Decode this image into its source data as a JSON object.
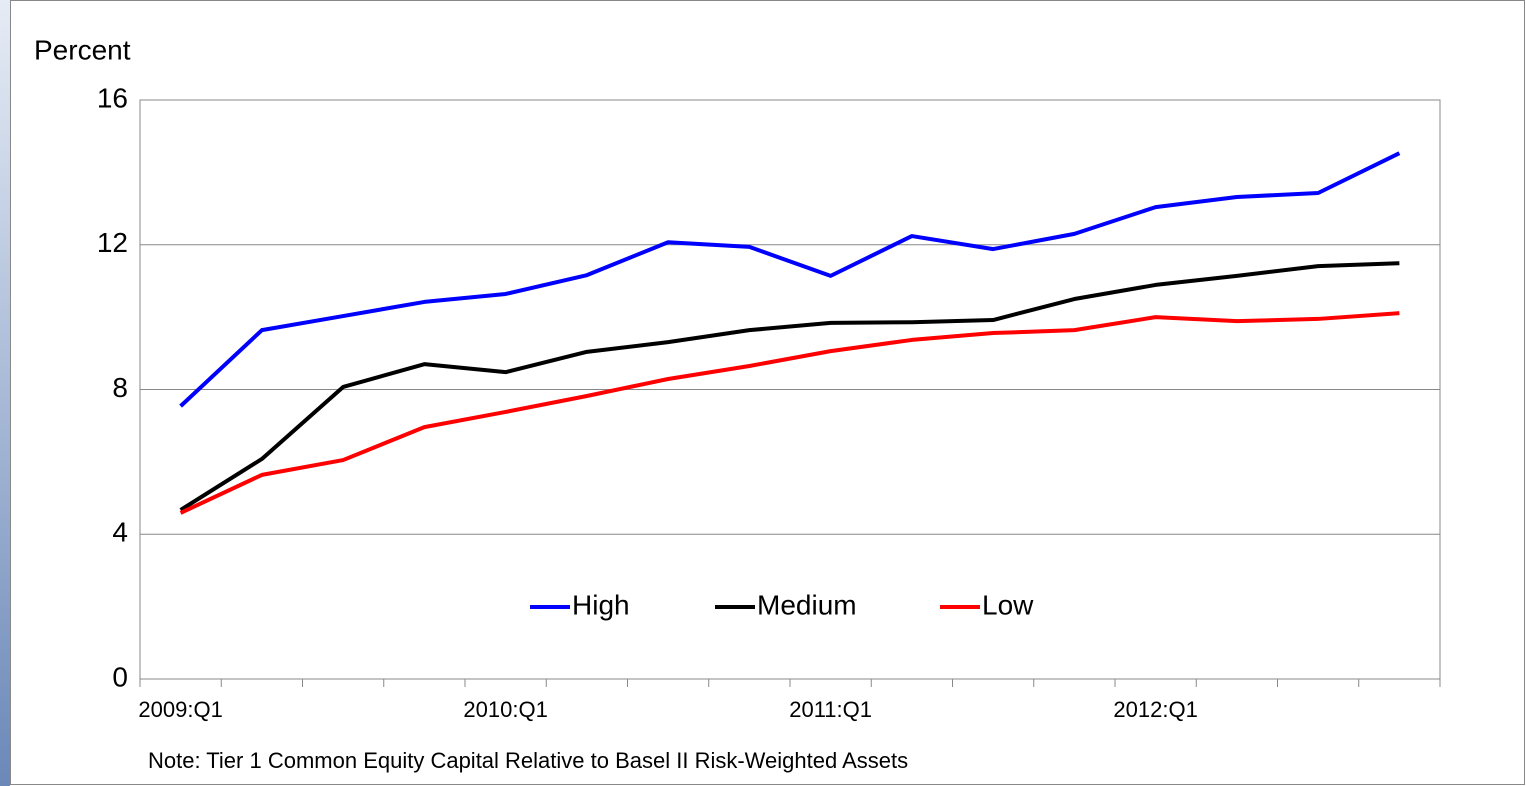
{
  "chart_data": {
    "type": "line",
    "y_label": "Percent",
    "note": "Note:  Tier 1 Common Equity Capital Relative to Basel II Risk-Weighted Assets",
    "categories": [
      "2009:Q1",
      null,
      null,
      null,
      "2010:Q1",
      null,
      null,
      null,
      "2011:Q1",
      null,
      null,
      null,
      "2012:Q1",
      null,
      null,
      null
    ],
    "series": [
      {
        "name": "High",
        "color": "#0000ff",
        "values": [
          7.54,
          9.64,
          10.03,
          10.42,
          10.64,
          11.16,
          12.07,
          11.94,
          11.14,
          12.24,
          11.88,
          12.3,
          13.04,
          13.32,
          13.43,
          14.53
        ]
      },
      {
        "name": "Medium",
        "color": "#000000",
        "values": [
          4.67,
          6.08,
          8.07,
          8.7,
          8.48,
          9.04,
          9.31,
          9.64,
          9.84,
          9.86,
          9.92,
          10.5,
          10.89,
          11.14,
          11.41,
          11.49
        ]
      },
      {
        "name": "Low",
        "color": "#ff0000",
        "values": [
          4.59,
          5.64,
          6.05,
          6.96,
          7.38,
          7.82,
          8.29,
          8.65,
          9.06,
          9.37,
          9.56,
          9.64,
          10.0,
          9.89,
          9.95,
          10.11
        ]
      }
    ],
    "ylim": [
      0,
      16
    ],
    "yticks": [
      0,
      4,
      8,
      12,
      16
    ],
    "grid": true,
    "legend": "lower center"
  }
}
